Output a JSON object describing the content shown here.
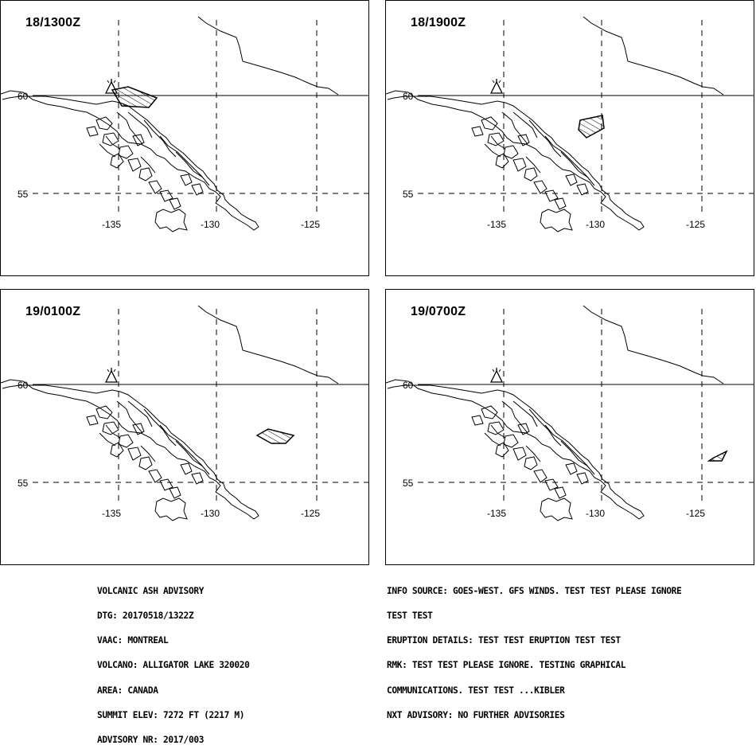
{
  "panels": [
    {
      "title": "18/1300Z",
      "ash_polygon": "18/1300Z"
    },
    {
      "title": "18/1900Z",
      "ash_polygon": "18/1900Z"
    },
    {
      "title": "19/0100Z",
      "ash_polygon": "19/0100Z"
    },
    {
      "title": "19/0700Z",
      "ash_polygon": "19/0700Z"
    }
  ],
  "map_labels": {
    "lat_60": "60",
    "lat_55": "55",
    "lon_135": "-135",
    "lon_130": "-130",
    "lon_125": "-125"
  },
  "advisory_left": [
    "VOLCANIC ASH ADVISORY",
    "DTG: 20170518/1322Z",
    "VAAC: MONTREAL",
    "VOLCANO: ALLIGATOR LAKE 320020",
    "AREA: CANADA",
    "SUMMIT ELEV: 7272 FT (2217 M)",
    "ADVISORY NR: 2017/003"
  ],
  "advisory_right": [
    "INFO SOURCE: GOES-WEST. GFS WINDS. TEST TEST PLEASE IGNORE",
    "TEST TEST",
    "ERUPTION DETAILS: TEST TEST ERUPTION TEST TEST",
    "RMK: TEST TEST PLEASE IGNORE. TESTING GRAPHICAL",
    "COMMUNICATIONS. TEST TEST ...KIBLER",
    "NXT ADVISORY: NO FURTHER ADVISORIES"
  ],
  "colors": {
    "line": "#000000",
    "background": "#ffffff"
  },
  "icons": {
    "volcano": "volcano-icon"
  }
}
